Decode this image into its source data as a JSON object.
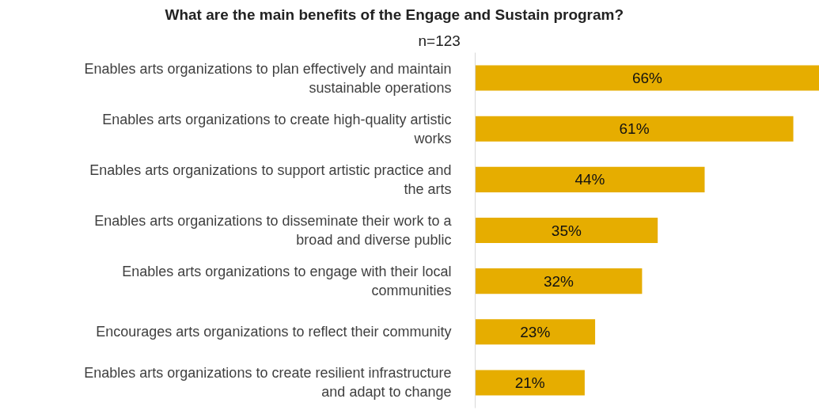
{
  "chart_data": {
    "type": "bar",
    "orientation": "horizontal",
    "title": "What are the main benefits of the Engage and Sustain program?",
    "subtitle": "n=123",
    "categories": [
      "Enables arts organizations to plan effectively and maintain sustainable operations",
      "Enables arts organizations to create high-quality artistic works",
      "Enables arts organizations to support artistic practice and the arts",
      "Enables arts organizations to disseminate their work to a broad and diverse public",
      "Enables arts organizations to engage with their local communities",
      "Encourages arts organizations to reflect their community",
      "Enables arts organizations to create resilient infrastructure and adapt to change"
    ],
    "values": [
      66,
      61,
      44,
      35,
      32,
      23,
      21
    ],
    "value_labels": [
      "66%",
      "61%",
      "44%",
      "35%",
      "32%",
      "23%",
      "21%"
    ],
    "color": "#e6ad00",
    "grid": false
  }
}
